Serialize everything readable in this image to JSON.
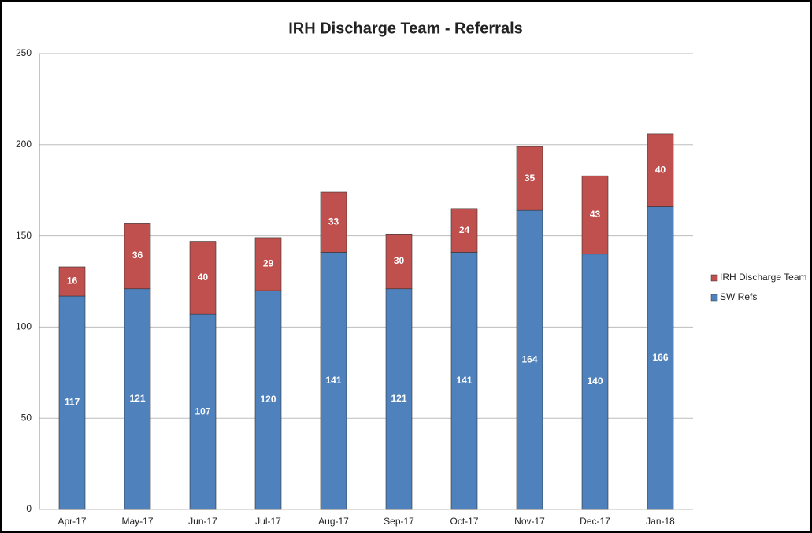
{
  "chart_data": {
    "type": "stacked_bar",
    "title": "IRH Discharge Team - Referrals",
    "categories": [
      "Apr-17",
      "May-17",
      "Jun-17",
      "Jul-17",
      "Aug-17",
      "Sep-17",
      "Oct-17",
      "Nov-17",
      "Dec-17",
      "Jan-18"
    ],
    "series": [
      {
        "name": "SW Refs",
        "color": "#4f81bd",
        "values": [
          117,
          121,
          107,
          120,
          141,
          121,
          141,
          164,
          140,
          166
        ]
      },
      {
        "name": "IRH Discharge Team",
        "color": "#c0504d",
        "values": [
          16,
          36,
          40,
          29,
          33,
          30,
          24,
          35,
          43,
          40
        ]
      }
    ],
    "ylim": [
      0,
      250
    ],
    "yticks": [
      0,
      50,
      100,
      150,
      200,
      250
    ],
    "grid": true,
    "legend": "right"
  }
}
